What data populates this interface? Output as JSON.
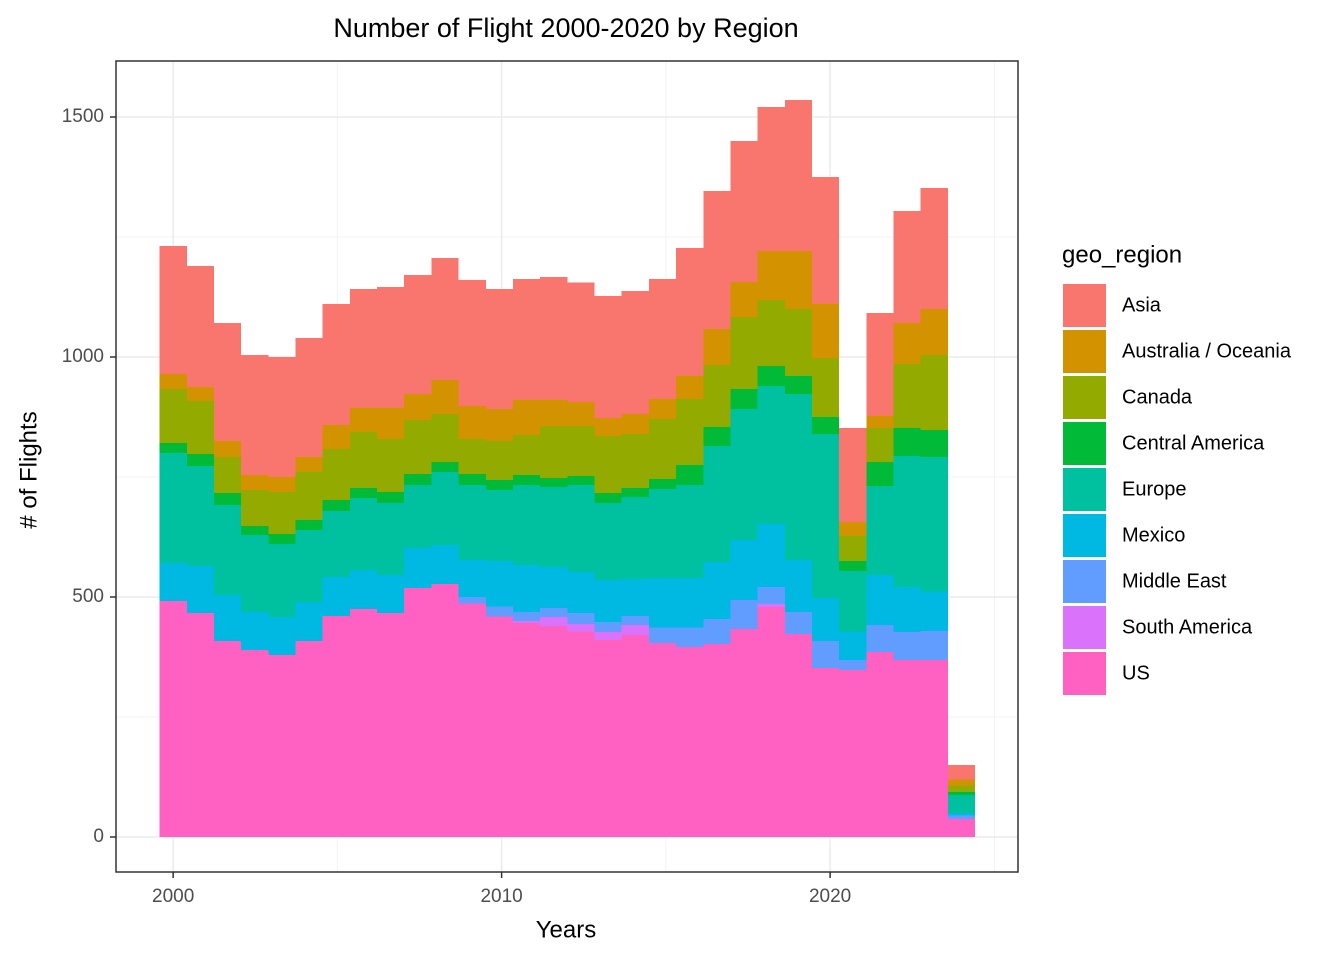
{
  "chart_data": {
    "type": "histogram",
    "title": "Number of Flight 2000-2020 by Region",
    "x_label": "Years",
    "y_label": "# of Flights",
    "legend_title": "geo_region",
    "legend_position": "right",
    "grid": true,
    "stacked": true,
    "bins": [
      1999.586,
      2000.414,
      2001.241,
      2002.069,
      2002.897,
      2003.724,
      2004.552,
      2005.379,
      2006.207,
      2007.034,
      2007.862,
      2008.69,
      2009.517,
      2010.345,
      2011.172,
      2012.0,
      2012.828,
      2013.655,
      2014.483,
      2015.31,
      2016.138,
      2016.966,
      2017.793,
      2018.621,
      2019.448,
      2020.276,
      2021.103,
      2021.931,
      2022.759,
      2023.586,
      2024.414
    ],
    "xlim": [
      1998.26,
      2025.72
    ],
    "ylim": [
      -72.9,
      1616.7
    ],
    "xticks": [
      2000,
      2010,
      2020
    ],
    "yticks": [
      0,
      500,
      1000,
      1500
    ],
    "series": [
      {
        "name": "US",
        "color": "#FF61C3",
        "values": [
          492,
          467,
          408,
          390,
          379,
          408,
          460,
          475,
          467,
          519,
          527,
          487,
          459,
          446,
          440,
          428,
          410,
          421,
          404,
          396,
          402,
          433,
          479,
          423,
          352,
          348,
          385,
          369,
          369,
          38
        ]
      },
      {
        "name": "South America",
        "color": "#DB72FB",
        "values": [
          0,
          0,
          0,
          0,
          0,
          0,
          0,
          0,
          0,
          0,
          0,
          0,
          0,
          4,
          18,
          16,
          17,
          21,
          0,
          0,
          0,
          0,
          6,
          0,
          0,
          0,
          0,
          0,
          0,
          0
        ]
      },
      {
        "name": "Middle East",
        "color": "#619CFF",
        "values": [
          0,
          0,
          0,
          0,
          0,
          0,
          0,
          0,
          0,
          0,
          0,
          13,
          21,
          19,
          19,
          23,
          21,
          18,
          33,
          41,
          52,
          61,
          36,
          46,
          56,
          21,
          57,
          58,
          60,
          7
        ]
      },
      {
        "name": "Mexico",
        "color": "#00B9E3",
        "values": [
          79,
          98,
          96,
          79,
          79,
          82,
          82,
          81,
          79,
          83,
          81,
          77,
          95,
          98,
          86,
          85,
          87,
          78,
          103,
          103,
          119,
          125,
          131,
          108,
          90,
          58,
          104,
          94,
          83,
          5
        ]
      },
      {
        "name": "Europe",
        "color": "#00C19F",
        "values": [
          229,
          208,
          188,
          160,
          152,
          150,
          137,
          150,
          150,
          131,
          152,
          156,
          148,
          166,
          166,
          181,
          161,
          170,
          185,
          193,
          242,
          273,
          288,
          346,
          342,
          127,
          185,
          273,
          280,
          38
        ]
      },
      {
        "name": "Central America",
        "color": "#00BA38",
        "values": [
          21,
          25,
          25,
          19,
          21,
          20,
          23,
          21,
          23,
          23,
          21,
          23,
          21,
          21,
          19,
          19,
          21,
          19,
          21,
          42,
          39,
          41,
          41,
          37,
          35,
          21,
          50,
          58,
          56,
          6
        ]
      },
      {
        "name": "Canada",
        "color": "#93AA00",
        "values": [
          112,
          110,
          75,
          75,
          88,
          100,
          106,
          117,
          110,
          113,
          100,
          73,
          81,
          84,
          108,
          104,
          118,
          113,
          125,
          138,
          129,
          150,
          138,
          140,
          123,
          52,
          71,
          133,
          156,
          13
        ]
      },
      {
        "name": "Australia / Oceania",
        "color": "#D39200",
        "values": [
          32,
          30,
          33,
          31,
          31,
          32,
          50,
          50,
          65,
          54,
          71,
          69,
          67,
          72,
          54,
          50,
          38,
          41,
          42,
          47,
          75,
          73,
          102,
          121,
          112,
          29,
          25,
          86,
          96,
          13
        ]
      },
      {
        "name": "Asia",
        "color": "#F8766D",
        "values": [
          266,
          252,
          246,
          250,
          250,
          248,
          252,
          248,
          252,
          248,
          254,
          262,
          250,
          253,
          257,
          249,
          254,
          257,
          250,
          267,
          288,
          294,
          300,
          314,
          265,
          196,
          215,
          233,
          252,
          30
        ]
      }
    ]
  }
}
